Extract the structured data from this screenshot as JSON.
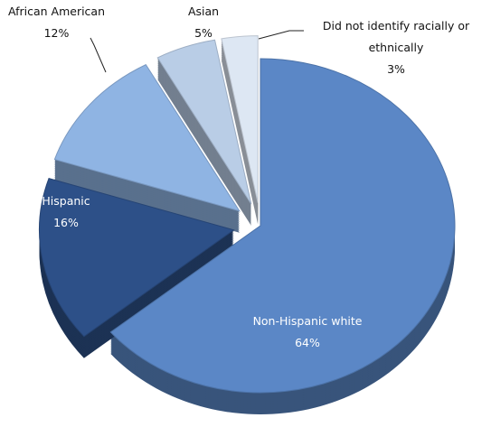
{
  "chart_data": {
    "type": "pie3d",
    "categories": [
      "Non-Hispanic white",
      "Hispanic",
      "African American",
      "Asian",
      "Did not identify racially or ethnically"
    ],
    "values": [
      64,
      16,
      12,
      5,
      3
    ],
    "value_labels": [
      "64%",
      "16%",
      "12%",
      "5%",
      "3%"
    ],
    "colors": [
      "#5b87c6",
      "#2d5088",
      "#8fb4e3",
      "#b9cde6",
      "#dde7f3"
    ]
  }
}
